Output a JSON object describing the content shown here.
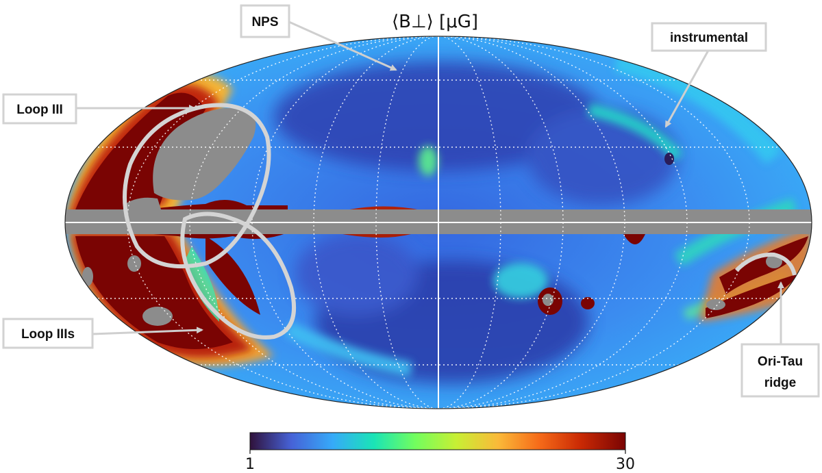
{
  "title": "⟨B⊥⟩ [μG]",
  "callouts": {
    "nps": "NPS",
    "instrumental": "instrumental",
    "loop3": "Loop III",
    "loop3s": "Loop IIIs",
    "oritau_line1": "Ori-Tau",
    "oritau_line2": "ridge"
  },
  "colorbar": {
    "min_label": "1",
    "max_label": "30",
    "colormap": "turbo",
    "colors": [
      "#30123b",
      "#4662d7",
      "#36aaf9",
      "#1ae4b6",
      "#72fe5e",
      "#c8ef34",
      "#faba39",
      "#f66b19",
      "#ca2a04",
      "#7a0403"
    ]
  },
  "colors": {
    "background_field": "#3a7fe6",
    "masked": "#8c8c8c",
    "saturated": "#7a0403",
    "callout_gray": "#d0d0d0"
  }
}
